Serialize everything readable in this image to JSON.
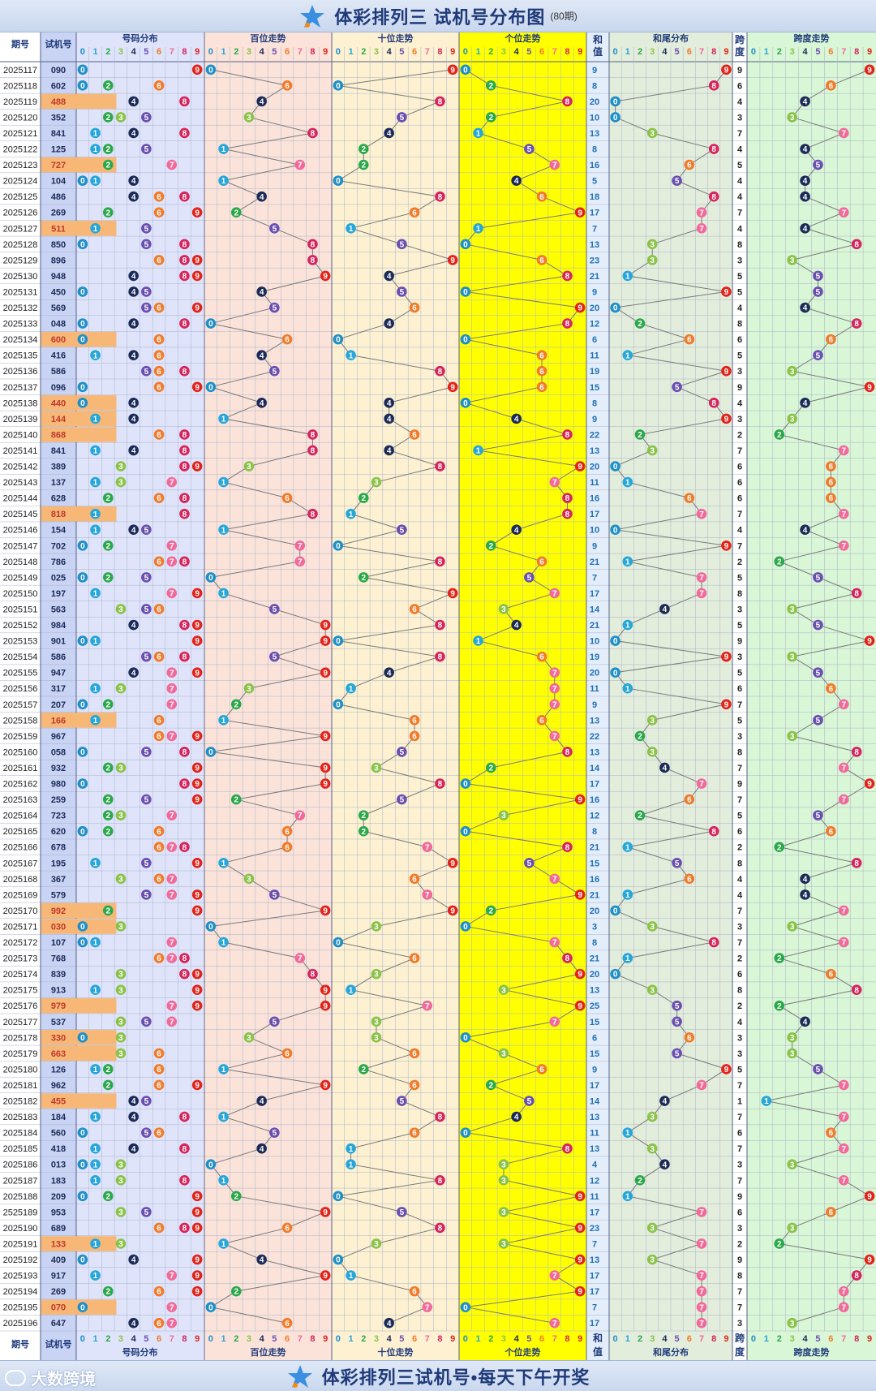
{
  "header": {
    "title": "体彩排列三 试机号分布图",
    "subtitle": "(80期)"
  },
  "footer": {
    "title": "体彩排列三试机号•每天下午开奖",
    "brand": "大数跨境"
  },
  "columns": {
    "period": "期号",
    "number": "试机号",
    "dist": "号码分布",
    "hundreds": "百位走势",
    "tens": "十位走势",
    "units": "个位走势",
    "sum": [
      "和",
      "值"
    ],
    "sum_tail": "和尾分布",
    "span": [
      "跨",
      "度"
    ],
    "span_trend": "跨度走势"
  },
  "digit_colors": [
    "#1f8fc8",
    "#26a6d9",
    "#2aa84a",
    "#8bc34a",
    "#1b2a57",
    "#6a4fb0",
    "#f07b2a",
    "#f06a9a",
    "#d6245c",
    "#e2231a"
  ],
  "chart_data": {
    "type": "table",
    "periods": [
      "2025117",
      "2025118",
      "2025119",
      "2025120",
      "2025121",
      "2025122",
      "2025123",
      "2025124",
      "2025125",
      "2025126",
      "2025127",
      "2025128",
      "2025129",
      "2025130",
      "2025131",
      "2025132",
      "2025133",
      "2025134",
      "2025135",
      "2025136",
      "2025137",
      "2025138",
      "2025139",
      "2025140",
      "2025141",
      "2025142",
      "2025143",
      "2025144",
      "2025145",
      "2025146",
      "2025147",
      "2025148",
      "2025149",
      "2025150",
      "2025151",
      "2025152",
      "2025153",
      "2025154",
      "2025155",
      "2025156",
      "2025157",
      "2025158",
      "2025159",
      "2025160",
      "2025161",
      "2025162",
      "2025163",
      "2025164",
      "2025165",
      "2025166",
      "2025167",
      "2025168",
      "2025169",
      "2025170",
      "2025171",
      "2025172",
      "2025173",
      "2025174",
      "2025175",
      "2025176",
      "2025177",
      "2025178",
      "2025179",
      "2025180",
      "2025181",
      "2025182",
      "2025183",
      "2025184",
      "2025185",
      "2025186",
      "2025187",
      "2025188",
      "2525189",
      "2025190",
      "2025191",
      "2025192",
      "2025193",
      "2025194",
      "2025195",
      "2025196"
    ],
    "numbers": [
      "090",
      "602",
      "488",
      "352",
      "841",
      "125",
      "727",
      "104",
      "486",
      "269",
      "511",
      "850",
      "896",
      "948",
      "450",
      "569",
      "048",
      "600",
      "416",
      "586",
      "096",
      "440",
      "144",
      "868",
      "841",
      "389",
      "137",
      "628",
      "818",
      "154",
      "702",
      "786",
      "025",
      "197",
      "563",
      "984",
      "901",
      "586",
      "947",
      "317",
      "207",
      "166",
      "967",
      "058",
      "932",
      "980",
      "259",
      "723",
      "620",
      "678",
      "195",
      "367",
      "579",
      "992",
      "030",
      "107",
      "768",
      "839",
      "913",
      "979",
      "537",
      "330",
      "663",
      "126",
      "962",
      "455",
      "184",
      "560",
      "418",
      "013",
      "183",
      "209",
      "953",
      "689",
      "133",
      "409",
      "917",
      "269",
      "070",
      "647"
    ],
    "sums": [
      9,
      8,
      20,
      10,
      13,
      8,
      16,
      5,
      18,
      17,
      7,
      13,
      23,
      21,
      9,
      20,
      12,
      6,
      11,
      19,
      15,
      8,
      9,
      22,
      13,
      20,
      11,
      16,
      17,
      10,
      9,
      21,
      7,
      17,
      14,
      21,
      10,
      19,
      20,
      11,
      9,
      13,
      22,
      13,
      14,
      17,
      16,
      12,
      8,
      21,
      15,
      16,
      21,
      20,
      3,
      8,
      21,
      20,
      13,
      25,
      15,
      6,
      15,
      9,
      17,
      14,
      13,
      11,
      13,
      4,
      12,
      11,
      17,
      23,
      7,
      13,
      17,
      17,
      7,
      17
    ],
    "spans": [
      9,
      6,
      4,
      3,
      7,
      4,
      5,
      4,
      4,
      7,
      4,
      8,
      3,
      5,
      5,
      4,
      8,
      6,
      5,
      3,
      9,
      4,
      3,
      2,
      7,
      6,
      6,
      6,
      7,
      4,
      7,
      2,
      5,
      8,
      3,
      5,
      9,
      3,
      5,
      6,
      7,
      5,
      3,
      8,
      7,
      9,
      7,
      5,
      6,
      2,
      8,
      4,
      4,
      7,
      3,
      7,
      2,
      6,
      8,
      2,
      4,
      3,
      3,
      5,
      7,
      1,
      7,
      6,
      7,
      3,
      7,
      9,
      6,
      3,
      2,
      9,
      8,
      7,
      7,
      3
    ],
    "highlight_rows": [
      "488",
      "727",
      "511",
      "600",
      "440",
      "144",
      "868",
      "818",
      "166",
      "992",
      "030",
      "979",
      "330",
      "663",
      "455",
      "133",
      "070"
    ]
  }
}
